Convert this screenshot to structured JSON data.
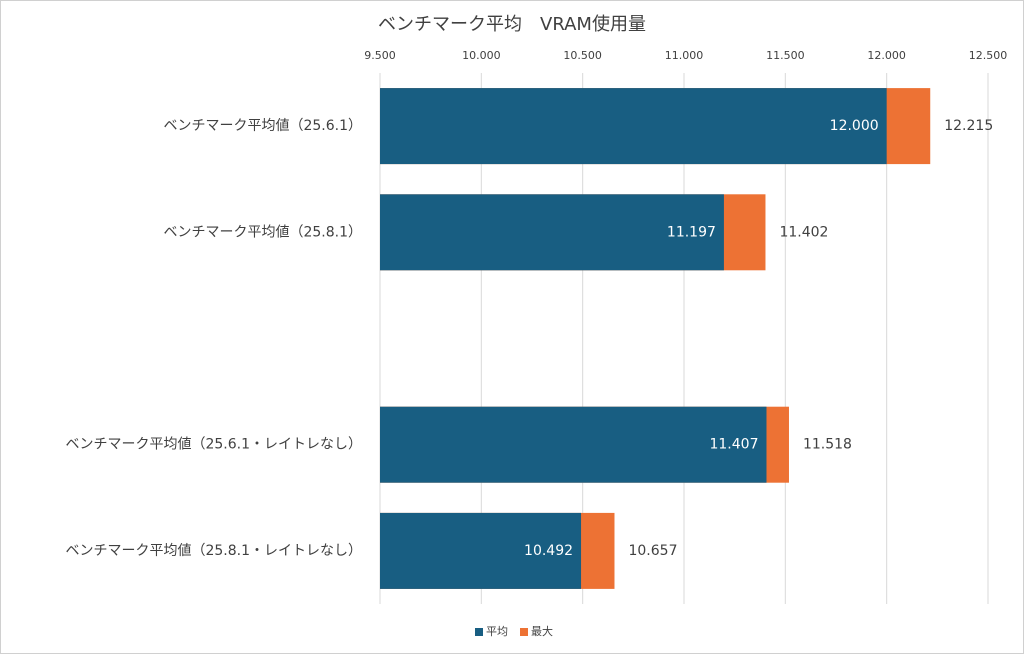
{
  "chart_data": {
    "type": "bar",
    "orientation": "horizontal",
    "overlap": true,
    "title": "ベンチマーク平均　VRAM使用量",
    "categories": [
      "ベンチマーク平均値（25.6.1）",
      "ベンチマーク平均値（25.8.1）",
      null,
      "ベンチマーク平均値（25.6.1・レイトレなし）",
      "ベンチマーク平均値（25.8.1・レイトレなし）"
    ],
    "series": [
      {
        "name": "最大",
        "color": "#ed7234",
        "values": [
          12.215,
          11.402,
          null,
          11.518,
          10.657
        ],
        "value_labels": [
          "12.215",
          "11.402",
          null,
          "11.518",
          "10.657"
        ]
      },
      {
        "name": "平均",
        "color": "#185e82",
        "values": [
          12.0,
          11.197,
          null,
          11.407,
          10.492
        ],
        "value_labels": [
          "12.000",
          "11.197",
          null,
          "11.407",
          "10.492"
        ]
      }
    ],
    "xlim": [
      9.5,
      12.5
    ],
    "xticks": [
      {
        "value": 9.5,
        "label": "9.500"
      },
      {
        "value": 10.0,
        "label": "10.000"
      },
      {
        "value": 10.5,
        "label": "10.500"
      },
      {
        "value": 11.0,
        "label": "11.000"
      },
      {
        "value": 11.5,
        "label": "11.500"
      },
      {
        "value": 12.0,
        "label": "12.000"
      },
      {
        "value": 12.5,
        "label": "12.500"
      }
    ],
    "grid": true,
    "legend": "bottom"
  }
}
